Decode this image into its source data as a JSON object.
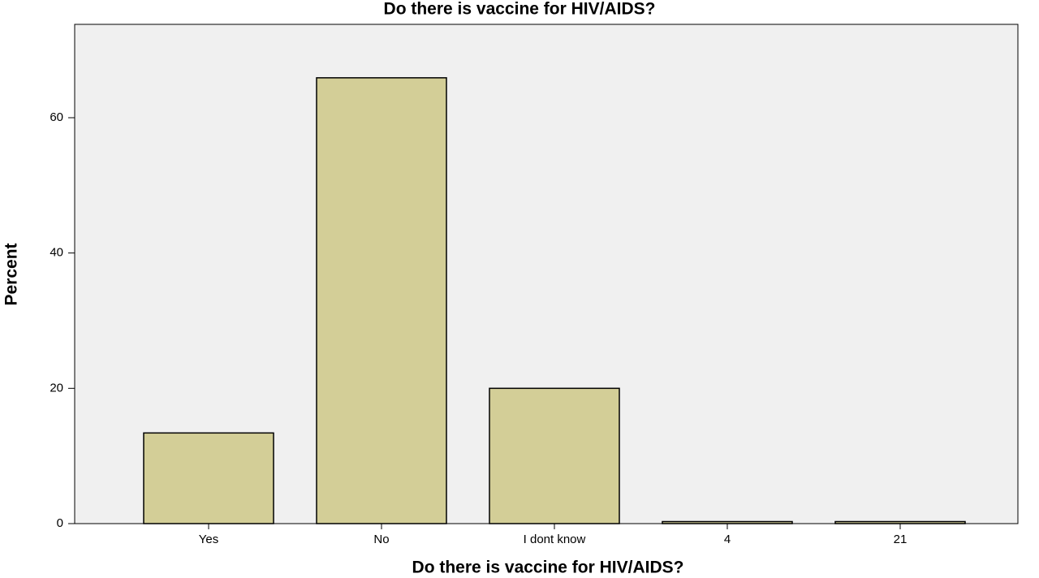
{
  "chart_data": {
    "type": "bar",
    "title": "Do there is vaccine for HIV/AIDS?",
    "x_label": "Do there is vaccine for HIV/AIDS?",
    "y_label": "Percent",
    "categories": [
      "Yes",
      "No",
      "I dont know",
      "4",
      "21"
    ],
    "values": [
      13.4,
      65.9,
      20.0,
      0.3,
      0.3
    ],
    "color": "#d3ce97",
    "ylim": [
      0,
      73.8
    ],
    "yticks": [
      0,
      20,
      40,
      60
    ],
    "grid": false
  }
}
